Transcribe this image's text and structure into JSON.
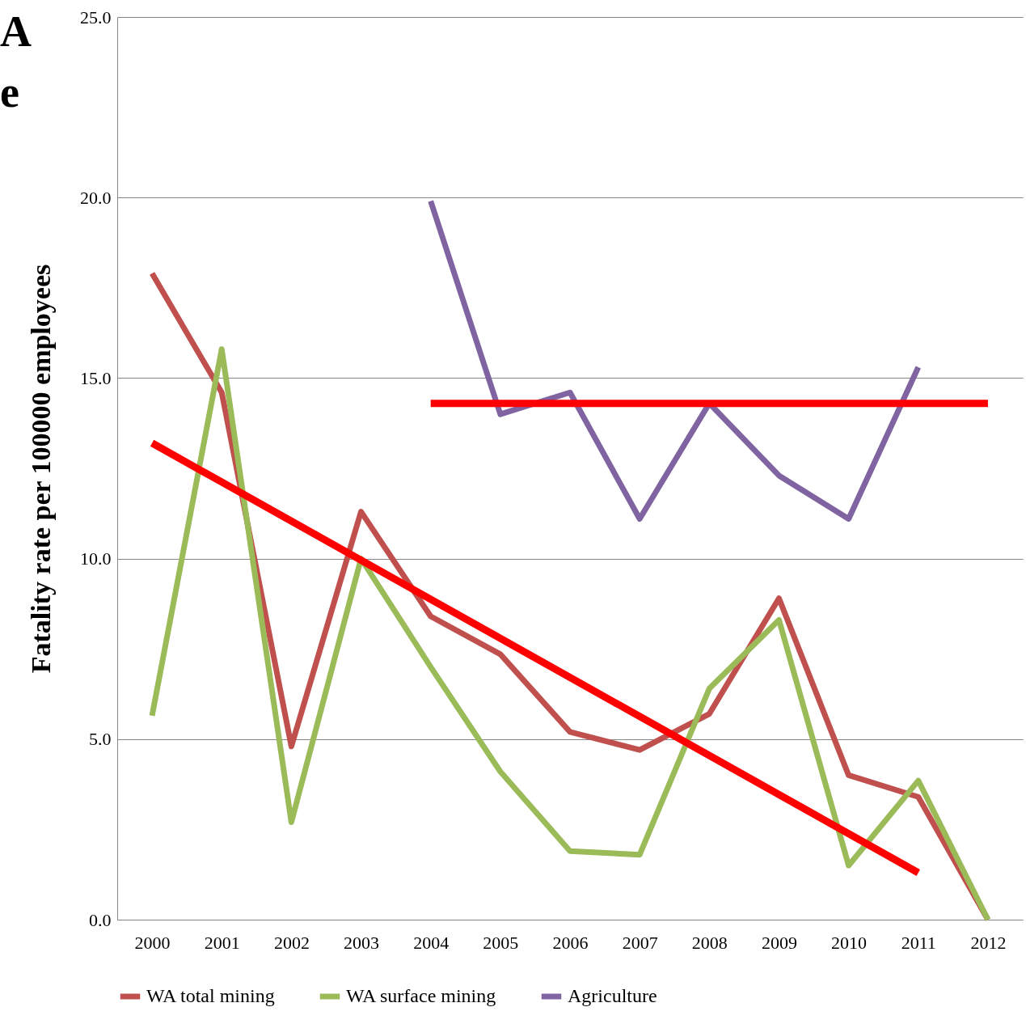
{
  "chart_data": {
    "type": "line",
    "ylabel": "Fatality rate per 100000 employees",
    "annotations": [
      "A",
      "e"
    ],
    "categories": [
      "2000",
      "2001",
      "2002",
      "2003",
      "2004",
      "2005",
      "2006",
      "2007",
      "2008",
      "2009",
      "2010",
      "2011",
      "2012"
    ],
    "series": [
      {
        "name": "WA total mining",
        "color": "#c0504d",
        "values": [
          17.9,
          14.6,
          4.8,
          11.3,
          8.4,
          7.35,
          5.2,
          4.7,
          5.7,
          8.9,
          4.0,
          3.4,
          0
        ]
      },
      {
        "name": "WA surface mining",
        "color": "#9bbb59",
        "values": [
          5.65,
          15.8,
          2.7,
          10.0,
          7.0,
          4.1,
          1.9,
          1.8,
          6.4,
          8.3,
          1.5,
          3.85,
          0
        ]
      },
      {
        "name": "Agriculture",
        "color": "#8064a2",
        "values": [
          null,
          null,
          null,
          null,
          19.9,
          14.0,
          14.6,
          11.1,
          14.3,
          12.3,
          11.1,
          15.3,
          null
        ]
      },
      {
        "type": "line",
        "color": "#ff0000",
        "values": [
          13.2,
          null,
          null,
          null,
          null,
          null,
          null,
          null,
          null,
          null,
          null,
          1.3,
          null
        ]
      },
      {
        "type": "line",
        "color": "#ff0000",
        "values": [
          null,
          null,
          null,
          null,
          14.3,
          null,
          null,
          null,
          null,
          null,
          null,
          null,
          14.3
        ]
      }
    ],
    "ylim": [
      0,
      25
    ],
    "yticks": [
      {
        "value": 0,
        "label": "0.0"
      },
      {
        "value": 5,
        "label": "5.0"
      },
      {
        "value": 10,
        "label": "10.0"
      },
      {
        "value": 15,
        "label": "15.0"
      },
      {
        "value": 20,
        "label": "20.0"
      },
      {
        "value": 25,
        "label": "25.0"
      }
    ],
    "grid": "y",
    "legend": "bottom",
    "marker": "none",
    "line_style": "solid"
  }
}
